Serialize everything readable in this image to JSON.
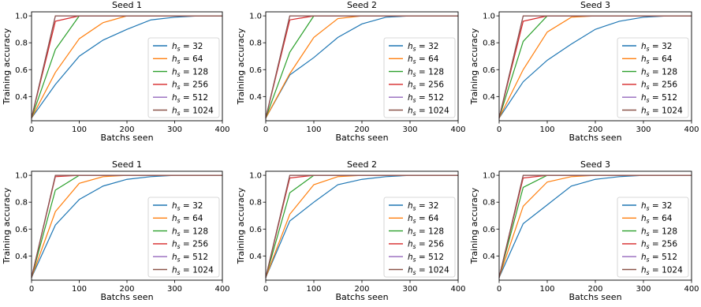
{
  "colors": {
    "hs32": "#1f77b4",
    "hs64": "#ff7f0e",
    "hs128": "#2ca02c",
    "hs256": "#d62728",
    "hs512": "#9467bd",
    "hs1024": "#8c564b"
  },
  "chart_data": [
    {
      "type": "line",
      "title": "Seed 1",
      "xlabel": "Batchs seen",
      "ylabel": "Training accuracy",
      "xlim": [
        0,
        400
      ],
      "ylim": [
        0.22,
        1.03
      ],
      "xticks": [
        "0",
        "100",
        "200",
        "300",
        "400"
      ],
      "yticks": [
        "0.4",
        "0.6",
        "0.8",
        "1.0"
      ],
      "grid": false,
      "legend": "lower right",
      "x": [
        0,
        50,
        100,
        150,
        200,
        250,
        300,
        350,
        400
      ],
      "series": [
        {
          "name": "32",
          "color_key": "hs32",
          "values": [
            0.24,
            0.49,
            0.7,
            0.82,
            0.9,
            0.97,
            0.99,
            1.0,
            1.0
          ]
        },
        {
          "name": "64",
          "color_key": "hs64",
          "values": [
            0.24,
            0.58,
            0.83,
            0.95,
            1.0,
            1.0,
            1.0,
            1.0,
            1.0
          ]
        },
        {
          "name": "128",
          "color_key": "hs128",
          "values": [
            0.24,
            0.75,
            1.0,
            1.0,
            1.0,
            1.0,
            1.0,
            1.0,
            1.0
          ]
        },
        {
          "name": "256",
          "color_key": "hs256",
          "values": [
            0.24,
            0.96,
            1.0,
            1.0,
            1.0,
            1.0,
            1.0,
            1.0,
            1.0
          ]
        },
        {
          "name": "512",
          "color_key": "hs512",
          "values": [
            0.24,
            1.0,
            1.0,
            1.0,
            1.0,
            1.0,
            1.0,
            1.0,
            1.0
          ]
        },
        {
          "name": "1024",
          "color_key": "hs1024",
          "values": [
            0.24,
            1.0,
            1.0,
            1.0,
            1.0,
            1.0,
            1.0,
            1.0,
            1.0
          ]
        }
      ]
    },
    {
      "type": "line",
      "title": "Seed 2",
      "xlabel": "Batchs seen",
      "ylabel": "Training accuracy",
      "xlim": [
        0,
        400
      ],
      "ylim": [
        0.22,
        1.03
      ],
      "xticks": [
        "0",
        "100",
        "200",
        "300",
        "400"
      ],
      "yticks": [
        "0.4",
        "0.6",
        "0.8",
        "1.0"
      ],
      "grid": false,
      "legend": "lower right",
      "x": [
        0,
        50,
        100,
        150,
        200,
        250,
        300,
        350,
        400
      ],
      "series": [
        {
          "name": "32",
          "color_key": "hs32",
          "values": [
            0.24,
            0.56,
            0.69,
            0.84,
            0.94,
            0.99,
            1.0,
            1.0,
            1.0
          ]
        },
        {
          "name": "64",
          "color_key": "hs64",
          "values": [
            0.24,
            0.57,
            0.84,
            0.98,
            1.0,
            1.0,
            1.0,
            1.0,
            1.0
          ]
        },
        {
          "name": "128",
          "color_key": "hs128",
          "values": [
            0.24,
            0.73,
            1.0,
            1.0,
            1.0,
            1.0,
            1.0,
            1.0,
            1.0
          ]
        },
        {
          "name": "256",
          "color_key": "hs256",
          "values": [
            0.24,
            0.97,
            1.0,
            1.0,
            1.0,
            1.0,
            1.0,
            1.0,
            1.0
          ]
        },
        {
          "name": "512",
          "color_key": "hs512",
          "values": [
            0.24,
            1.0,
            1.0,
            1.0,
            1.0,
            1.0,
            1.0,
            1.0,
            1.0
          ]
        },
        {
          "name": "1024",
          "color_key": "hs1024",
          "values": [
            0.24,
            1.0,
            1.0,
            1.0,
            1.0,
            1.0,
            1.0,
            1.0,
            1.0
          ]
        }
      ]
    },
    {
      "type": "line",
      "title": "Seed 3",
      "xlabel": "Batchs seen",
      "ylabel": "Training accuracy",
      "xlim": [
        0,
        400
      ],
      "ylim": [
        0.22,
        1.03
      ],
      "xticks": [
        "0",
        "100",
        "200",
        "300",
        "400"
      ],
      "yticks": [
        "0.4",
        "0.6",
        "0.8",
        "1.0"
      ],
      "grid": false,
      "legend": "lower right",
      "x": [
        0,
        50,
        100,
        150,
        200,
        250,
        300,
        350,
        400
      ],
      "series": [
        {
          "name": "32",
          "color_key": "hs32",
          "values": [
            0.24,
            0.51,
            0.67,
            0.79,
            0.9,
            0.96,
            0.99,
            1.0,
            1.0
          ]
        },
        {
          "name": "64",
          "color_key": "hs64",
          "values": [
            0.24,
            0.6,
            0.88,
            0.99,
            1.0,
            1.0,
            1.0,
            1.0,
            1.0
          ]
        },
        {
          "name": "128",
          "color_key": "hs128",
          "values": [
            0.24,
            0.81,
            1.0,
            1.0,
            1.0,
            1.0,
            1.0,
            1.0,
            1.0
          ]
        },
        {
          "name": "256",
          "color_key": "hs256",
          "values": [
            0.24,
            0.96,
            1.0,
            1.0,
            1.0,
            1.0,
            1.0,
            1.0,
            1.0
          ]
        },
        {
          "name": "512",
          "color_key": "hs512",
          "values": [
            0.24,
            1.0,
            1.0,
            1.0,
            1.0,
            1.0,
            1.0,
            1.0,
            1.0
          ]
        },
        {
          "name": "1024",
          "color_key": "hs1024",
          "values": [
            0.24,
            1.0,
            1.0,
            1.0,
            1.0,
            1.0,
            1.0,
            1.0,
            1.0
          ]
        }
      ]
    },
    {
      "type": "line",
      "title": "Seed 1",
      "xlabel": "Batchs seen",
      "ylabel": "Training accuracy",
      "xlim": [
        0,
        400
      ],
      "ylim": [
        0.22,
        1.03
      ],
      "xticks": [
        "0",
        "100",
        "200",
        "300",
        "400"
      ],
      "yticks": [
        "0.4",
        "0.6",
        "0.8",
        "1.0"
      ],
      "grid": false,
      "legend": "lower right",
      "x": [
        0,
        50,
        100,
        150,
        200,
        250,
        300,
        350,
        400
      ],
      "series": [
        {
          "name": "32",
          "color_key": "hs32",
          "values": [
            0.24,
            0.63,
            0.82,
            0.92,
            0.97,
            0.99,
            1.0,
            1.0,
            1.0
          ]
        },
        {
          "name": "64",
          "color_key": "hs64",
          "values": [
            0.24,
            0.73,
            0.94,
            0.99,
            1.0,
            1.0,
            1.0,
            1.0,
            1.0
          ]
        },
        {
          "name": "128",
          "color_key": "hs128",
          "values": [
            0.24,
            0.89,
            1.0,
            1.0,
            1.0,
            1.0,
            1.0,
            1.0,
            1.0
          ]
        },
        {
          "name": "256",
          "color_key": "hs256",
          "values": [
            0.24,
            0.99,
            1.0,
            1.0,
            1.0,
            1.0,
            1.0,
            1.0,
            1.0
          ]
        },
        {
          "name": "512",
          "color_key": "hs512",
          "values": [
            0.24,
            1.0,
            1.0,
            1.0,
            1.0,
            1.0,
            1.0,
            1.0,
            1.0
          ]
        },
        {
          "name": "1024",
          "color_key": "hs1024",
          "values": [
            0.24,
            1.0,
            1.0,
            1.0,
            1.0,
            1.0,
            1.0,
            1.0,
            1.0
          ]
        }
      ]
    },
    {
      "type": "line",
      "title": "Seed 2",
      "xlabel": "Batchs seen",
      "ylabel": "Training accuracy",
      "xlim": [
        0,
        400
      ],
      "ylim": [
        0.22,
        1.03
      ],
      "xticks": [
        "0",
        "100",
        "200",
        "300",
        "400"
      ],
      "yticks": [
        "0.4",
        "0.6",
        "0.8",
        "1.0"
      ],
      "grid": false,
      "legend": "lower right",
      "x": [
        0,
        50,
        100,
        150,
        200,
        250,
        300,
        350,
        400
      ],
      "series": [
        {
          "name": "32",
          "color_key": "hs32",
          "values": [
            0.24,
            0.66,
            0.8,
            0.93,
            0.97,
            0.99,
            1.0,
            1.0,
            1.0
          ]
        },
        {
          "name": "64",
          "color_key": "hs64",
          "values": [
            0.24,
            0.71,
            0.93,
            0.99,
            1.0,
            1.0,
            1.0,
            1.0,
            1.0
          ]
        },
        {
          "name": "128",
          "color_key": "hs128",
          "values": [
            0.24,
            0.87,
            1.0,
            1.0,
            1.0,
            1.0,
            1.0,
            1.0,
            1.0
          ]
        },
        {
          "name": "256",
          "color_key": "hs256",
          "values": [
            0.24,
            0.98,
            1.0,
            1.0,
            1.0,
            1.0,
            1.0,
            1.0,
            1.0
          ]
        },
        {
          "name": "512",
          "color_key": "hs512",
          "values": [
            0.24,
            1.0,
            1.0,
            1.0,
            1.0,
            1.0,
            1.0,
            1.0,
            1.0
          ]
        },
        {
          "name": "1024",
          "color_key": "hs1024",
          "values": [
            0.24,
            1.0,
            1.0,
            1.0,
            1.0,
            1.0,
            1.0,
            1.0,
            1.0
          ]
        }
      ]
    },
    {
      "type": "line",
      "title": "Seed 3",
      "xlabel": "Batchs seen",
      "ylabel": "Training accuracy",
      "xlim": [
        0,
        400
      ],
      "ylim": [
        0.22,
        1.03
      ],
      "xticks": [
        "0",
        "100",
        "200",
        "300",
        "400"
      ],
      "yticks": [
        "0.4",
        "0.6",
        "0.8",
        "1.0"
      ],
      "grid": false,
      "legend": "lower right",
      "x": [
        0,
        50,
        100,
        150,
        200,
        250,
        300,
        350,
        400
      ],
      "series": [
        {
          "name": "32",
          "color_key": "hs32",
          "values": [
            0.24,
            0.64,
            0.78,
            0.92,
            0.97,
            0.99,
            1.0,
            1.0,
            1.0
          ]
        },
        {
          "name": "64",
          "color_key": "hs64",
          "values": [
            0.24,
            0.77,
            0.95,
            0.99,
            1.0,
            1.0,
            1.0,
            1.0,
            1.0
          ]
        },
        {
          "name": "128",
          "color_key": "hs128",
          "values": [
            0.24,
            0.91,
            1.0,
            1.0,
            1.0,
            1.0,
            1.0,
            1.0,
            1.0
          ]
        },
        {
          "name": "256",
          "color_key": "hs256",
          "values": [
            0.24,
            0.98,
            1.0,
            1.0,
            1.0,
            1.0,
            1.0,
            1.0,
            1.0
          ]
        },
        {
          "name": "512",
          "color_key": "hs512",
          "values": [
            0.24,
            1.0,
            1.0,
            1.0,
            1.0,
            1.0,
            1.0,
            1.0,
            1.0
          ]
        },
        {
          "name": "1024",
          "color_key": "hs1024",
          "values": [
            0.24,
            1.0,
            1.0,
            1.0,
            1.0,
            1.0,
            1.0,
            1.0,
            1.0
          ]
        }
      ]
    }
  ]
}
